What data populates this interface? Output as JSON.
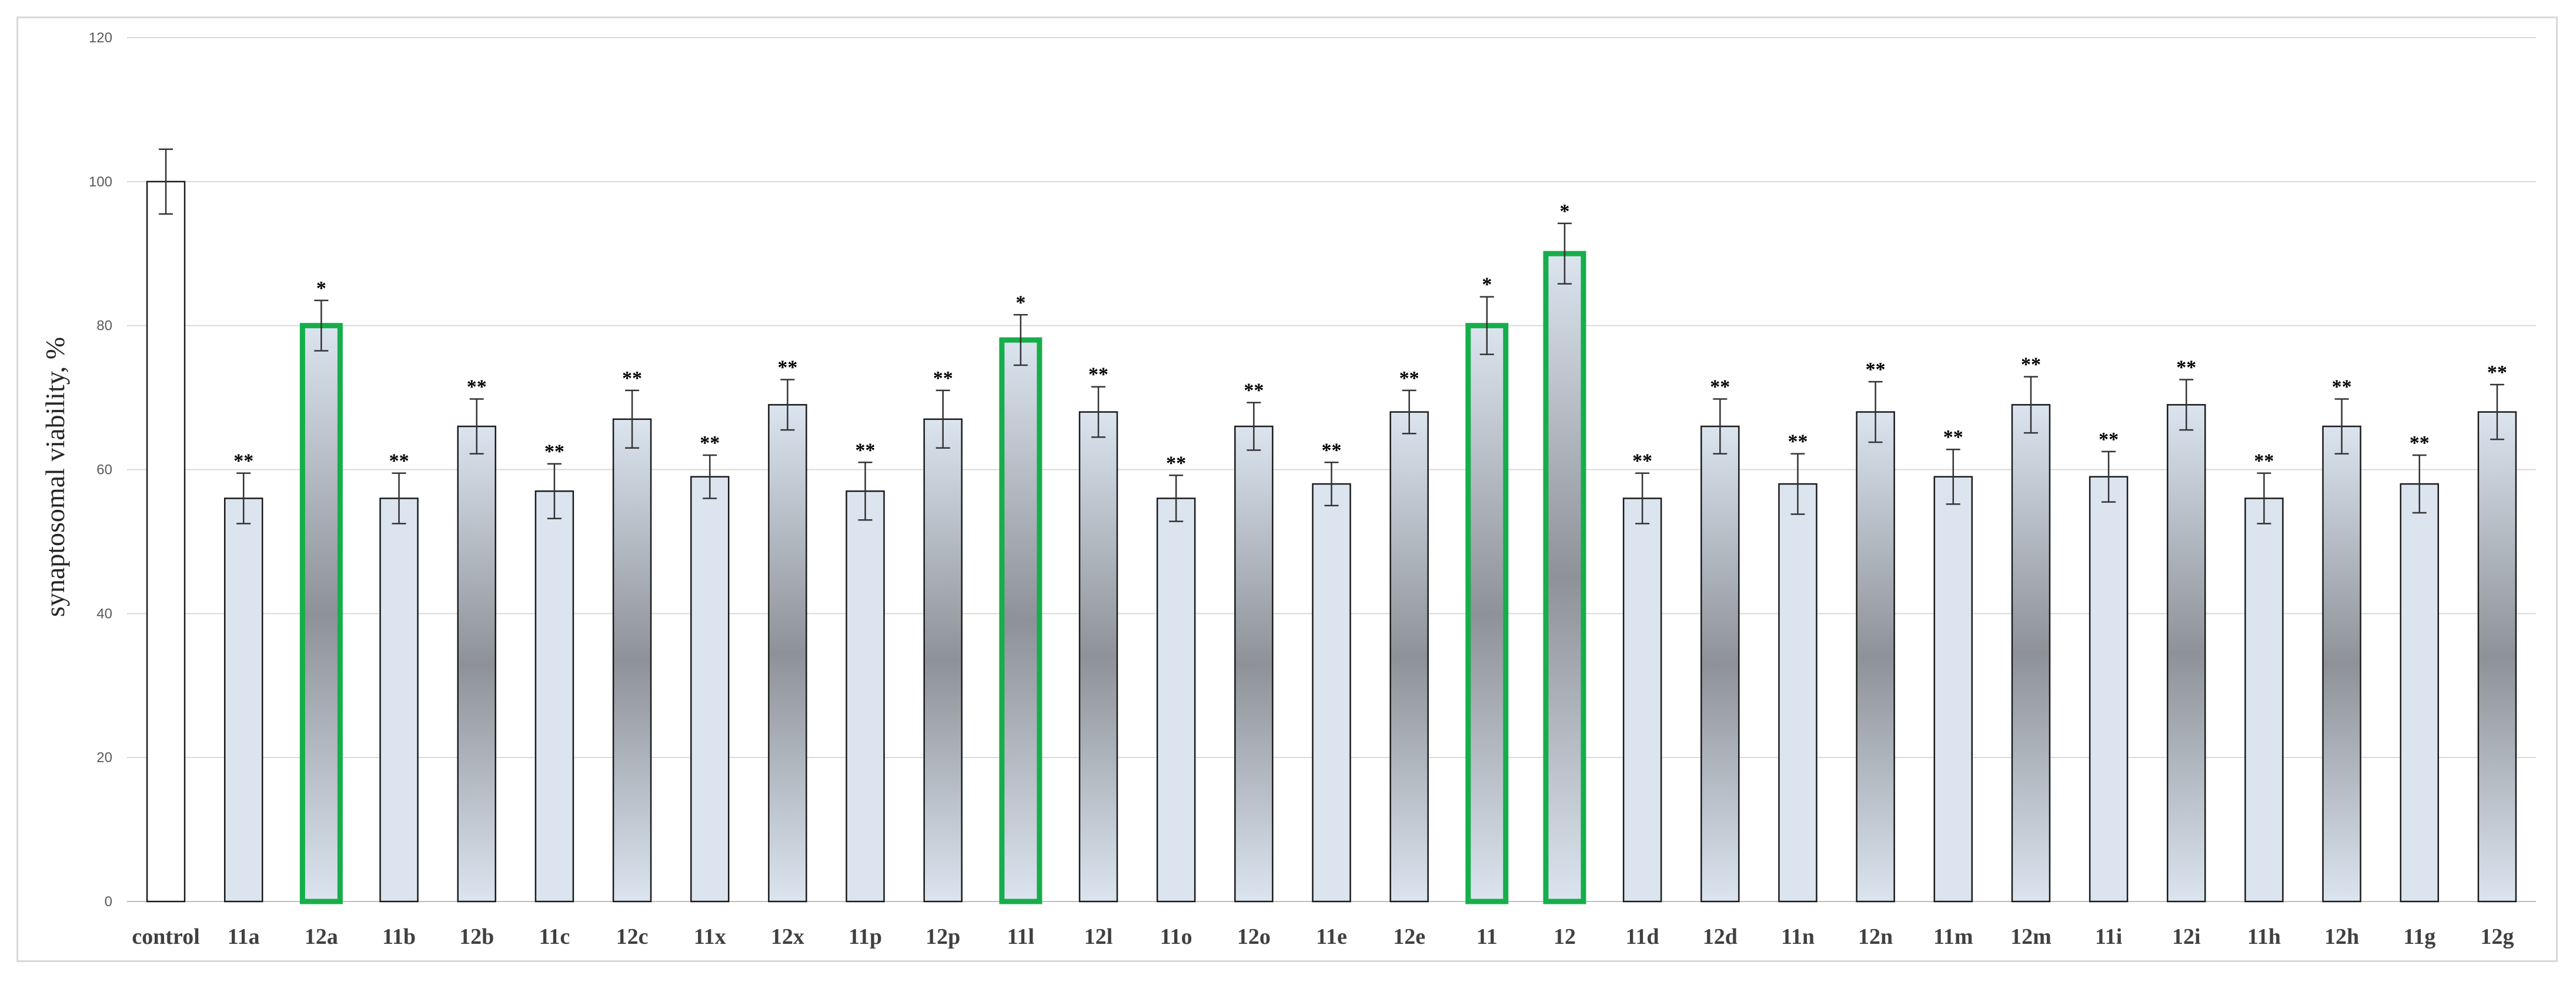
{
  "chart_data": {
    "type": "bar",
    "title": "",
    "xlabel": "",
    "ylabel": "synaptosomal viability, %",
    "ylim": [
      0,
      120
    ],
    "yticks": [
      0,
      20,
      40,
      60,
      80,
      100,
      120
    ],
    "grid": true,
    "categories": [
      "control",
      "11a",
      "12a",
      "11b",
      "12b",
      "11c",
      "12c",
      "11x",
      "12x",
      "11p",
      "12p",
      "11l",
      "12l",
      "11o",
      "12o",
      "11e",
      "12e",
      "11",
      "12",
      "11d",
      "12d",
      "11n",
      "12n",
      "11m",
      "12m",
      "11i",
      "12i",
      "11h",
      "12h",
      "11g",
      "12g"
    ],
    "values": [
      100,
      56,
      80,
      56,
      66,
      57,
      67,
      59,
      69,
      57,
      67,
      78,
      68,
      56,
      66,
      58,
      68,
      80,
      90,
      56,
      66,
      58,
      68,
      59,
      69,
      59,
      69,
      56,
      66,
      58,
      68
    ],
    "errors": [
      4.5,
      3.5,
      3.5,
      3.5,
      3.8,
      3.8,
      4,
      3,
      3.5,
      4,
      4,
      3.5,
      3.5,
      3.2,
      3.3,
      3,
      3,
      4,
      4.2,
      3.5,
      3.8,
      4.2,
      4.2,
      3.8,
      3.9,
      3.5,
      3.5,
      3.5,
      3.8,
      4,
      3.8
    ],
    "significance": [
      "",
      "**",
      "*",
      "**",
      "**",
      "**",
      "**",
      "**",
      "**",
      "**",
      "**",
      "*",
      "**",
      "**",
      "**",
      "**",
      "**",
      "*",
      "*",
      "**",
      "**",
      "**",
      "**",
      "**",
      "**",
      "**",
      "**",
      "**",
      "**",
      "**",
      "**"
    ],
    "highlighted": [
      "12a",
      "11l",
      "11",
      "12"
    ],
    "colors": {
      "control_fill": "#ffffff",
      "bar_light": "#dbe4ef",
      "bar_dark": "#8e9298",
      "bar_edge": "#1a1a1a",
      "highlight_edge": "#16ae4a",
      "grid": "#d9d9d9"
    }
  }
}
